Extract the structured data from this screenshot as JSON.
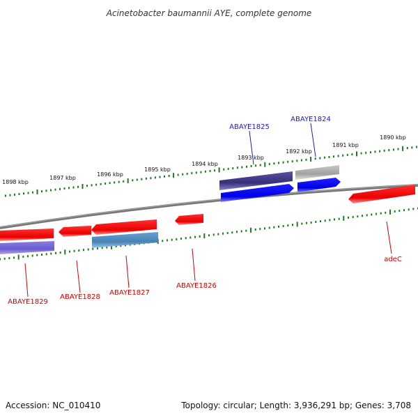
{
  "title": "Acinetobacter baumannii AYE, complete genome",
  "footer": {
    "accession": "Accession: NC_010410",
    "topology": "Topology: circular; Length: 3,936,291 bp; Genes: 3,708"
  },
  "scale_labels": [
    "1898 kbp",
    "1897 kbp",
    "1896 kbp",
    "1895 kbp",
    "1894 kbp",
    "1893 kbp",
    "1892 kbp",
    "1891 kbp",
    "1890 kbp"
  ],
  "genes_forward": [
    {
      "label": "ABAYE1825",
      "color": "#1a1acc"
    },
    {
      "label": "ABAYE1824",
      "color": "#1a1acc"
    }
  ],
  "genes_reverse": [
    {
      "label": "ABAYE1829",
      "color": "#cc0000"
    },
    {
      "label": "ABAYE1828",
      "color": "#cc0000"
    },
    {
      "label": "ABAYE1827",
      "color": "#cc0000"
    },
    {
      "label": "ABAYE1826",
      "color": "#cc0000"
    },
    {
      "label": "adeC",
      "color": "#cc0000"
    }
  ],
  "colors": {
    "backbone": "#777777",
    "ticks": "#1e7a1e",
    "cds_forward": "#0000ee",
    "cds_reverse": "#ee0000",
    "feature_dark_purple": "#3a3380",
    "feature_grey": "#aaaaaa",
    "feature_light_purple": "#6a5acd",
    "feature_steel_blue": "#4682b4"
  }
}
